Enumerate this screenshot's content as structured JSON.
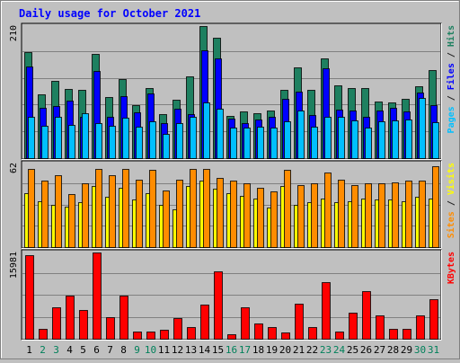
{
  "chart_data": [
    {
      "type": "bar",
      "title": "Daily usage for October 2021",
      "ymax_label": "210",
      "ylim": [
        0,
        210
      ],
      "side_label": [
        {
          "text": "Pages",
          "color": "#00bfff"
        },
        {
          "text": " / ",
          "color": "#222222"
        },
        {
          "text": "Files",
          "color": "#0000ff"
        },
        {
          "text": " / ",
          "color": "#222222"
        },
        {
          "text": "Hits",
          "color": "#1e8060"
        }
      ],
      "categories": [
        "1",
        "2",
        "3",
        "4",
        "5",
        "6",
        "7",
        "8",
        "9",
        "10",
        "11",
        "12",
        "13",
        "14",
        "15",
        "16",
        "17",
        "18",
        "19",
        "20",
        "21",
        "22",
        "23",
        "24",
        "25",
        "26",
        "27",
        "28",
        "29",
        "30",
        "31"
      ],
      "weekend_days": [
        "2",
        "3",
        "9",
        "10",
        "16",
        "17",
        "23",
        "24",
        "30",
        "31"
      ],
      "series": [
        {
          "name": "Hits",
          "color": "#1e8060",
          "values": [
            168,
            101,
            123,
            110,
            108,
            165,
            97,
            126,
            84,
            111,
            70,
            93,
            130,
            210,
            191,
            67,
            74,
            72,
            75,
            108,
            144,
            109,
            158,
            116,
            112,
            112,
            90,
            89,
            94,
            114,
            140
          ]
        },
        {
          "name": "Files",
          "color": "#0000ff",
          "values": [
            146,
            80,
            83,
            91,
            66,
            138,
            66,
            99,
            73,
            103,
            55,
            79,
            70,
            172,
            158,
            63,
            55,
            62,
            66,
            94,
            106,
            68,
            143,
            77,
            76,
            65,
            75,
            80,
            74,
            104,
            84
          ]
        },
        {
          "name": "Pages",
          "color": "#00bfff",
          "values": [
            65,
            52,
            66,
            53,
            71,
            56,
            51,
            64,
            50,
            59,
            38,
            55,
            65,
            89,
            78,
            49,
            48,
            50,
            49,
            58,
            76,
            50,
            66,
            66,
            60,
            48,
            59,
            60,
            61,
            96,
            57
          ]
        }
      ]
    },
    {
      "type": "bar",
      "ymax_label": "62",
      "ylim": [
        0,
        62
      ],
      "side_label": [
        {
          "text": "Sites",
          "color": "#ff8c00"
        },
        {
          "text": " / ",
          "color": "#222222"
        },
        {
          "text": "Visits",
          "color": "#ffff00"
        }
      ],
      "categories": [
        "1",
        "2",
        "3",
        "4",
        "5",
        "6",
        "7",
        "8",
        "9",
        "10",
        "11",
        "12",
        "13",
        "14",
        "15",
        "16",
        "17",
        "18",
        "19",
        "20",
        "21",
        "22",
        "23",
        "24",
        "25",
        "26",
        "27",
        "28",
        "29",
        "30",
        "31"
      ],
      "series": [
        {
          "name": "Visits",
          "color": "#ffff00",
          "values": [
            40,
            34,
            31,
            30,
            33,
            45,
            37,
            44,
            35,
            40,
            31,
            28,
            45,
            49,
            43,
            40,
            38,
            36,
            29,
            45,
            31,
            33,
            36,
            33,
            34,
            36,
            35,
            35,
            34,
            37,
            36
          ]
        },
        {
          "name": "Sites",
          "color": "#ff8c00",
          "values": [
            58,
            49,
            53,
            39,
            47,
            58,
            53,
            58,
            50,
            57,
            42,
            50,
            58,
            58,
            51,
            49,
            47,
            44,
            41,
            57,
            46,
            47,
            55,
            50,
            46,
            47,
            47,
            48,
            49,
            49,
            60
          ]
        }
      ]
    },
    {
      "type": "bar",
      "ymax_label": "15981",
      "ylim": [
        0,
        15981
      ],
      "side_label": [
        {
          "text": "KBytes",
          "color": "#ff0000"
        }
      ],
      "categories": [
        "1",
        "2",
        "3",
        "4",
        "5",
        "6",
        "7",
        "8",
        "9",
        "10",
        "11",
        "12",
        "13",
        "14",
        "15",
        "16",
        "17",
        "18",
        "19",
        "20",
        "21",
        "22",
        "23",
        "24",
        "25",
        "26",
        "27",
        "28",
        "29",
        "30",
        "31"
      ],
      "series": [
        {
          "name": "KBytes",
          "color": "#ff0000",
          "values": [
            15500,
            1800,
            5900,
            8000,
            5400,
            15981,
            4000,
            8000,
            1400,
            1400,
            1700,
            3800,
            2200,
            6400,
            12500,
            900,
            5800,
            2800,
            2200,
            1200,
            6500,
            2100,
            10500,
            1400,
            4900,
            8900,
            4300,
            1800,
            1800,
            4300,
            7400
          ]
        }
      ]
    }
  ]
}
